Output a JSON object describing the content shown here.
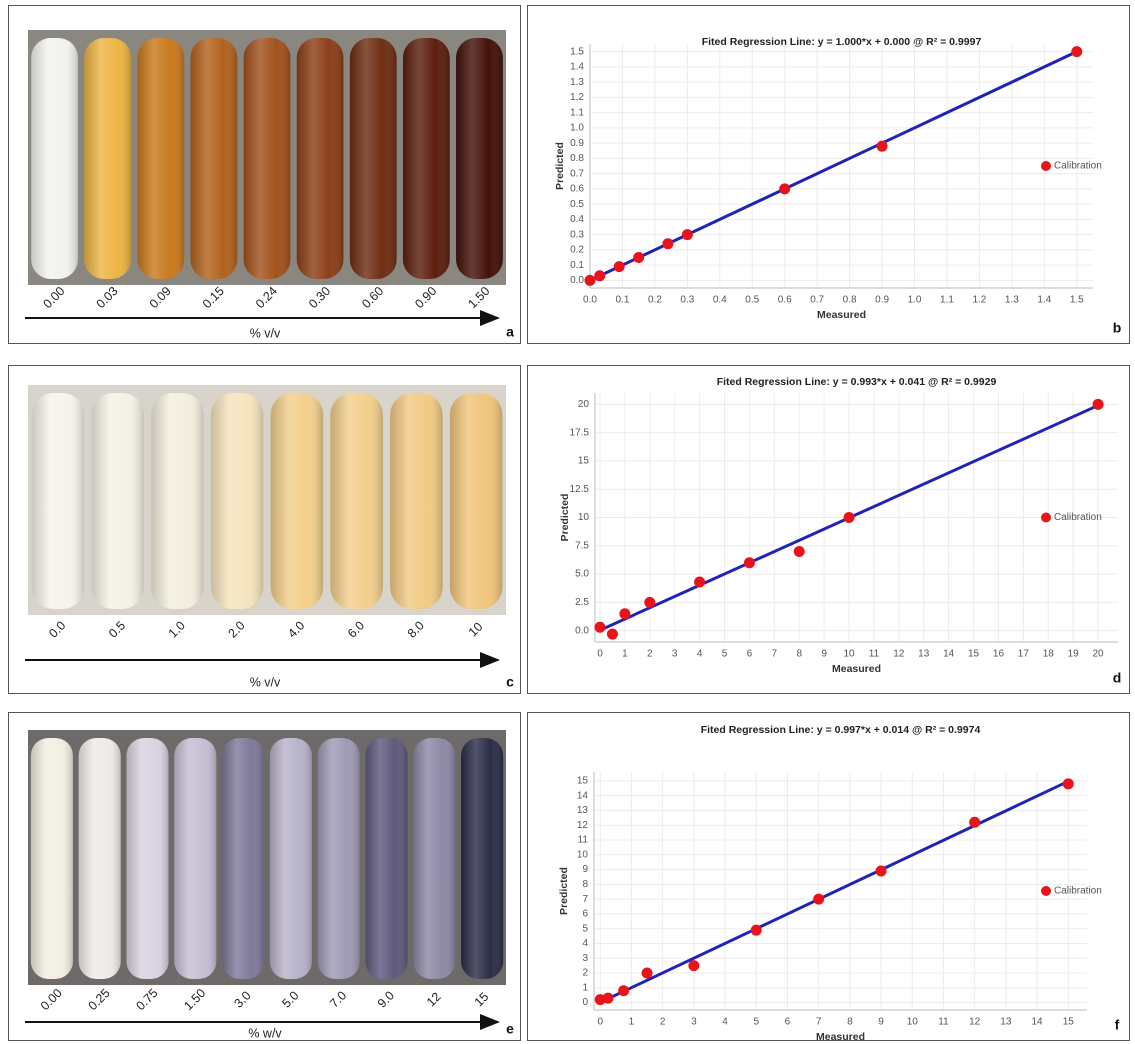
{
  "photos": [
    {
      "tubes": [
        {
          "label": "0.00",
          "color": "#f2f2ef"
        },
        {
          "label": "0.03",
          "color": "#eeb546"
        },
        {
          "label": "0.09",
          "color": "#c97a1e"
        },
        {
          "label": "0.15",
          "color": "#b2621d"
        },
        {
          "label": "0.24",
          "color": "#a2521c"
        },
        {
          "label": "0.30",
          "color": "#8c3f18"
        },
        {
          "label": "0.60",
          "color": "#6e2e13"
        },
        {
          "label": "0.90",
          "color": "#5c1f0e"
        },
        {
          "label": "1.50",
          "color": "#44120a"
        }
      ],
      "axis_label": "% v/v",
      "panel_label": "a",
      "background": "#8a8680"
    },
    {
      "tubes": [
        {
          "label": "0.0",
          "color": "#f6f3ea"
        },
        {
          "label": "0.5",
          "color": "#f4f1e6"
        },
        {
          "label": "1.0",
          "color": "#f3efdf"
        },
        {
          "label": "2.0",
          "color": "#f5e4bd"
        },
        {
          "label": "4.0",
          "color": "#f2cf8c"
        },
        {
          "label": "6.0",
          "color": "#f2cf8c"
        },
        {
          "label": "8.0",
          "color": "#f1ca84"
        },
        {
          "label": "10",
          "color": "#f0c57b"
        }
      ],
      "axis_label": "% v/v",
      "panel_label": "c",
      "background": "#d8d4cc"
    },
    {
      "tubes": [
        {
          "label": "0.00",
          "color": "#f2eee2"
        },
        {
          "label": "0.25",
          "color": "#eeebe8"
        },
        {
          "label": "0.75",
          "color": "#d8d3e0"
        },
        {
          "label": "1.50",
          "color": "#c5bfd4"
        },
        {
          "label": "3.0",
          "color": "#7f7a9a"
        },
        {
          "label": "5.0",
          "color": "#b8b3c9"
        },
        {
          "label": "7.0",
          "color": "#9f9ab5"
        },
        {
          "label": "9.0",
          "color": "#5f5a7e"
        },
        {
          "label": "12",
          "color": "#8e89a6"
        },
        {
          "label": "15",
          "color": "#2c2e48"
        }
      ],
      "axis_label": "% w/v",
      "panel_label": "e",
      "background": "#6e6a6a"
    }
  ],
  "chart_data": [
    {
      "type": "scatter",
      "title": "Fited Regression Line: y = 1.000*x + 0.000 @ R² = 0.9997",
      "x_label": "Measured",
      "y_label": "Predicted",
      "panel_label": "b",
      "legend": "right",
      "xlim": [
        0,
        1.55
      ],
      "ylim": [
        -0.05,
        1.55
      ],
      "grid": true,
      "xticks": [
        {
          "value": 0,
          "label": "0.0"
        },
        0.1,
        0.2,
        0.3,
        0.4,
        0.5,
        0.6,
        0.7,
        0.8,
        0.9,
        {
          "value": 1,
          "label": "1.0"
        },
        1.1,
        1.2,
        1.3,
        1.4,
        1.5
      ],
      "yticks": [
        {
          "value": 0,
          "label": "0.0"
        },
        0.1,
        0.2,
        0.3,
        0.4,
        0.5,
        0.6,
        0.7,
        0.8,
        0.9,
        {
          "value": 1,
          "label": "1.0"
        },
        1.1,
        1.2,
        1.3,
        1.4,
        1.5
      ],
      "fit": {
        "slope": 1.0,
        "intercept": 0.0,
        "color": "#1f23b8"
      },
      "series": [
        {
          "name": "Calibration",
          "color": "#e8141c",
          "x": [
            0,
            0.03,
            0.09,
            0.15,
            0.24,
            0.3,
            0.6,
            0.9,
            1.5
          ],
          "values": [
            0,
            0.03,
            0.09,
            0.15,
            0.24,
            0.3,
            0.6,
            0.88,
            1.5
          ]
        }
      ]
    },
    {
      "type": "scatter",
      "title": "Fited Regression Line: y = 0.993*x + 0.041 @ R² = 0.9929",
      "x_label": "Measured",
      "y_label": "Predicted",
      "panel_label": "d",
      "legend": "right",
      "xlim": [
        -0.2,
        20.8
      ],
      "ylim": [
        -1,
        21
      ],
      "grid": true,
      "xticks": [
        0,
        1,
        2,
        3,
        4,
        5,
        6,
        7,
        8,
        9,
        10,
        11,
        12,
        13,
        14,
        15,
        16,
        17,
        18,
        19,
        20
      ],
      "yticks": [
        {
          "value": 0,
          "label": "0.0"
        },
        2.5,
        {
          "value": 5,
          "label": "5.0"
        },
        7.5,
        10,
        12.5,
        15,
        17.5,
        20
      ],
      "fit": {
        "slope": 0.993,
        "intercept": 0.041,
        "color": "#1f23b8"
      },
      "series": [
        {
          "name": "Calibration",
          "color": "#e8141c",
          "x": [
            0,
            0.5,
            1,
            2,
            4,
            6,
            8,
            10,
            20
          ],
          "values": [
            0.3,
            -0.3,
            1.5,
            2.5,
            4.3,
            6,
            7,
            10,
            20
          ]
        }
      ]
    },
    {
      "type": "scatter",
      "title": "Fited Regression Line: y = 0.997*x + 0.014 @ R² = 0.9974",
      "x_label": "Measured",
      "y_label": "Predicted",
      "panel_label": "f",
      "legend": "right",
      "xlim": [
        -0.2,
        15.6
      ],
      "ylim": [
        -0.5,
        15.6
      ],
      "grid": true,
      "xticks": [
        0,
        1,
        2,
        3,
        4,
        5,
        6,
        7,
        8,
        9,
        10,
        11,
        12,
        13,
        14,
        15
      ],
      "yticks": [
        0,
        1,
        2,
        3,
        4,
        5,
        6,
        7,
        8,
        9,
        10,
        11,
        12,
        13,
        14,
        15
      ],
      "fit": {
        "slope": 0.997,
        "intercept": 0.014,
        "color": "#1f23b8"
      },
      "series": [
        {
          "name": "Calibration",
          "color": "#e8141c",
          "x": [
            0,
            0.25,
            0.75,
            1.5,
            3,
            5,
            7,
            9,
            12,
            15
          ],
          "values": [
            0.2,
            0.3,
            0.8,
            2,
            2.5,
            4.9,
            7,
            8.9,
            12.2,
            14.8
          ]
        }
      ]
    }
  ]
}
